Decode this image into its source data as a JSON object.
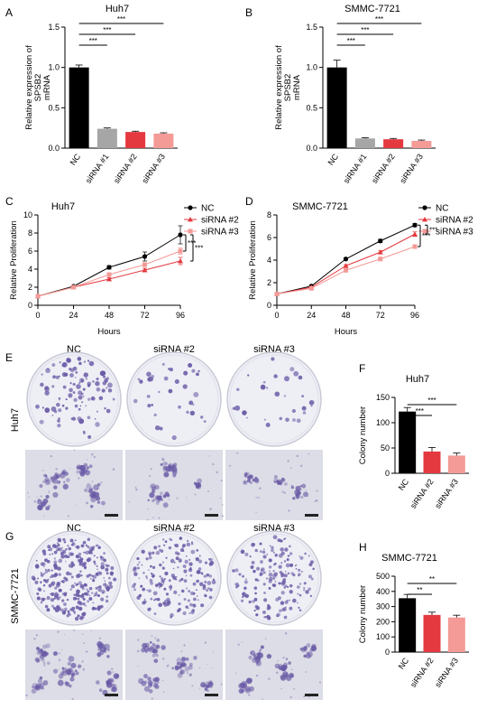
{
  "panel_letters": {
    "A": "A",
    "B": "B",
    "C": "C",
    "D": "D",
    "E": "E",
    "F": "F",
    "G": "G",
    "H": "H"
  },
  "colors": {
    "NC": "#000000",
    "siRNA #1": "#a6a6a6",
    "siRNA #2": "#e4393f",
    "siRNA #3": "#f49a97",
    "dish": "#eeeff5",
    "colony": "#6a5aa6",
    "micro_bg": "#dcdde6"
  },
  "photos": {
    "columns": [
      "NC",
      "siRNA #2",
      "siRNA #3"
    ],
    "rows": [
      "Huh7",
      "SMMC-7721"
    ]
  },
  "chart_data": [
    {
      "id": "A",
      "type": "bar",
      "title": "Huh7",
      "ylabel_lines": [
        "Relative expression of",
        "SPSB2",
        "mRNA"
      ],
      "categories": [
        "NC",
        "siRNA #1",
        "siRNA #2",
        "siRNA #3"
      ],
      "values": [
        1.0,
        0.24,
        0.2,
        0.18
      ],
      "errors": [
        0.03,
        0.01,
        0.01,
        0.01
      ],
      "ylim": [
        0,
        1.5
      ],
      "yticks": [
        "0.0",
        "0.5",
        "1.0",
        "1.5"
      ],
      "sig": [
        {
          "to": 1,
          "label": "***"
        },
        {
          "to": 2,
          "label": "***"
        },
        {
          "to": 3,
          "label": "***"
        }
      ]
    },
    {
      "id": "B",
      "type": "bar",
      "title": "SMMC-7721",
      "ylabel_lines": [
        "Relative expression of",
        "SPSB2",
        "mRNA"
      ],
      "categories": [
        "NC",
        "siRNA #1",
        "siRNA #2",
        "siRNA #3"
      ],
      "values": [
        1.0,
        0.12,
        0.11,
        0.09
      ],
      "errors": [
        0.09,
        0.01,
        0.01,
        0.01
      ],
      "ylim": [
        0,
        1.5
      ],
      "yticks": [
        "0.0",
        "0.5",
        "1.0",
        "1.5"
      ],
      "sig": [
        {
          "to": 1,
          "label": "***"
        },
        {
          "to": 2,
          "label": "***"
        },
        {
          "to": 3,
          "label": "***"
        }
      ]
    },
    {
      "id": "C",
      "type": "line",
      "title": "Huh7",
      "xlabel": "Hours",
      "ylabel": "Relative Proliferation",
      "x": [
        0,
        24,
        48,
        72,
        96
      ],
      "xticks": [
        "0",
        "24",
        "48",
        "72",
        "96"
      ],
      "ylim": [
        0,
        10
      ],
      "yticks": [
        "0",
        "2",
        "4",
        "6",
        "8",
        "10"
      ],
      "series": [
        {
          "name": "NC",
          "marker": "circle",
          "values": [
            1.0,
            2.1,
            4.2,
            5.4,
            7.8
          ],
          "errors": [
            0.05,
            0.1,
            0.2,
            0.5,
            1.0
          ]
        },
        {
          "name": "siRNA #2",
          "marker": "triangle",
          "values": [
            1.0,
            2.0,
            2.9,
            3.9,
            4.9
          ],
          "errors": [
            0.05,
            0.1,
            0.15,
            0.2,
            0.4
          ]
        },
        {
          "name": "siRNA #3",
          "marker": "square",
          "values": [
            1.0,
            2.0,
            3.4,
            4.5,
            6.0
          ],
          "errors": [
            0.05,
            0.1,
            0.15,
            0.2,
            0.35
          ]
        }
      ],
      "sig": [
        "***",
        "***"
      ]
    },
    {
      "id": "D",
      "type": "line",
      "title": "SMMC-7721",
      "xlabel": "Hours",
      "ylabel": "Relative Proliferation",
      "x": [
        0,
        24,
        48,
        72,
        96
      ],
      "xticks": [
        "0",
        "24",
        "48",
        "72",
        "96"
      ],
      "ylim": [
        0,
        8
      ],
      "yticks": [
        "0",
        "2",
        "4",
        "6",
        "8"
      ],
      "series": [
        {
          "name": "NC",
          "marker": "circle",
          "values": [
            1.0,
            1.7,
            4.1,
            5.7,
            7.1
          ],
          "errors": [
            0.03,
            0.05,
            0.1,
            0.15,
            0.15
          ]
        },
        {
          "name": "siRNA #2",
          "marker": "triangle",
          "values": [
            1.0,
            1.6,
            3.5,
            4.7,
            6.3
          ],
          "errors": [
            0.03,
            0.05,
            0.1,
            0.15,
            0.2
          ]
        },
        {
          "name": "siRNA #3",
          "marker": "square",
          "values": [
            1.0,
            1.5,
            3.1,
            4.1,
            5.2
          ],
          "errors": [
            0.03,
            0.05,
            0.1,
            0.15,
            0.15
          ]
        }
      ],
      "sig": [
        "***",
        "***"
      ]
    },
    {
      "id": "F",
      "type": "bar",
      "title": "Huh7",
      "ylabel": "Colony number",
      "categories": [
        "NC",
        "siRNA #2",
        "siRNA #3"
      ],
      "values": [
        122,
        43,
        35
      ],
      "errors": [
        8,
        8,
        5
      ],
      "ylim": [
        0,
        150
      ],
      "yticks": [
        "0",
        "50",
        "100",
        "150"
      ],
      "sig": [
        {
          "to": 1,
          "label": "***"
        },
        {
          "to": 2,
          "label": "***"
        }
      ]
    },
    {
      "id": "H",
      "type": "bar",
      "title": "SMMC-7721",
      "ylabel": "Colony number",
      "categories": [
        "NC",
        "siRNA #2",
        "siRNA #3"
      ],
      "values": [
        355,
        245,
        228
      ],
      "errors": [
        25,
        18,
        15
      ],
      "ylim": [
        0,
        500
      ],
      "yticks": [
        "0",
        "100",
        "200",
        "300",
        "400",
        "500"
      ],
      "sig": [
        {
          "to": 1,
          "label": "**"
        },
        {
          "to": 2,
          "label": "**"
        }
      ]
    }
  ]
}
